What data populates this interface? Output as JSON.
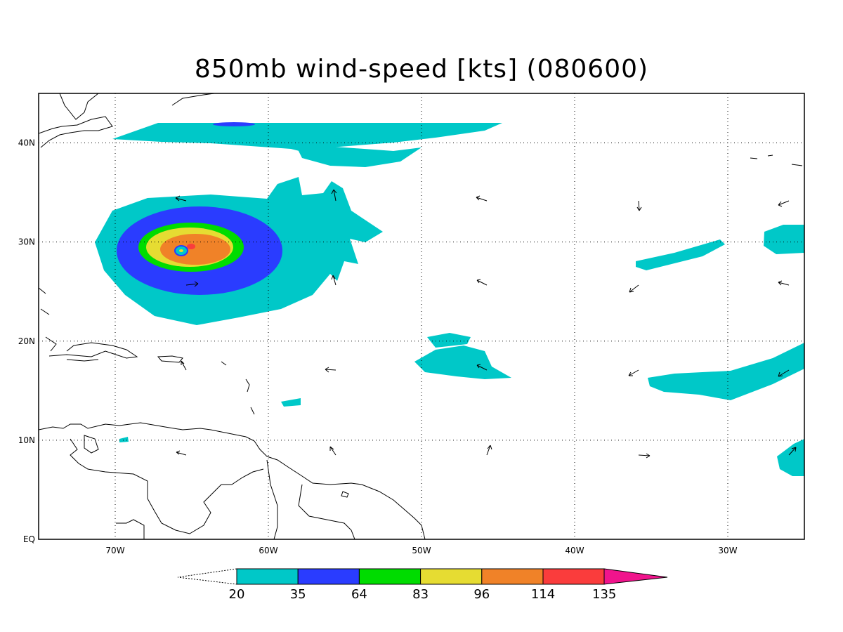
{
  "title": "850mb wind-speed [kts] (080600)",
  "map": {
    "lon_range": [
      -75,
      -25
    ],
    "lat_range": [
      0,
      45
    ],
    "lon_ticks": [
      {
        "value": -70,
        "label": "70W"
      },
      {
        "value": -60,
        "label": "60W"
      },
      {
        "value": -50,
        "label": "50W"
      },
      {
        "value": -40,
        "label": "40W"
      },
      {
        "value": -30,
        "label": "30W"
      }
    ],
    "lat_ticks": [
      {
        "value": 0,
        "label": "EQ"
      },
      {
        "value": 10,
        "label": "10N"
      },
      {
        "value": 20,
        "label": "20N"
      },
      {
        "value": 30,
        "label": "30N"
      },
      {
        "value": 40,
        "label": "40N"
      }
    ],
    "grid": "dotted"
  },
  "colorbar": {
    "levels": [
      "20",
      "35",
      "64",
      "83",
      "96",
      "114",
      "135"
    ],
    "colors": [
      "#00c8c8",
      "#2a3cff",
      "#00dc00",
      "#e6dc32",
      "#f08228",
      "#fa3c3c",
      "#f0148c"
    ]
  }
}
